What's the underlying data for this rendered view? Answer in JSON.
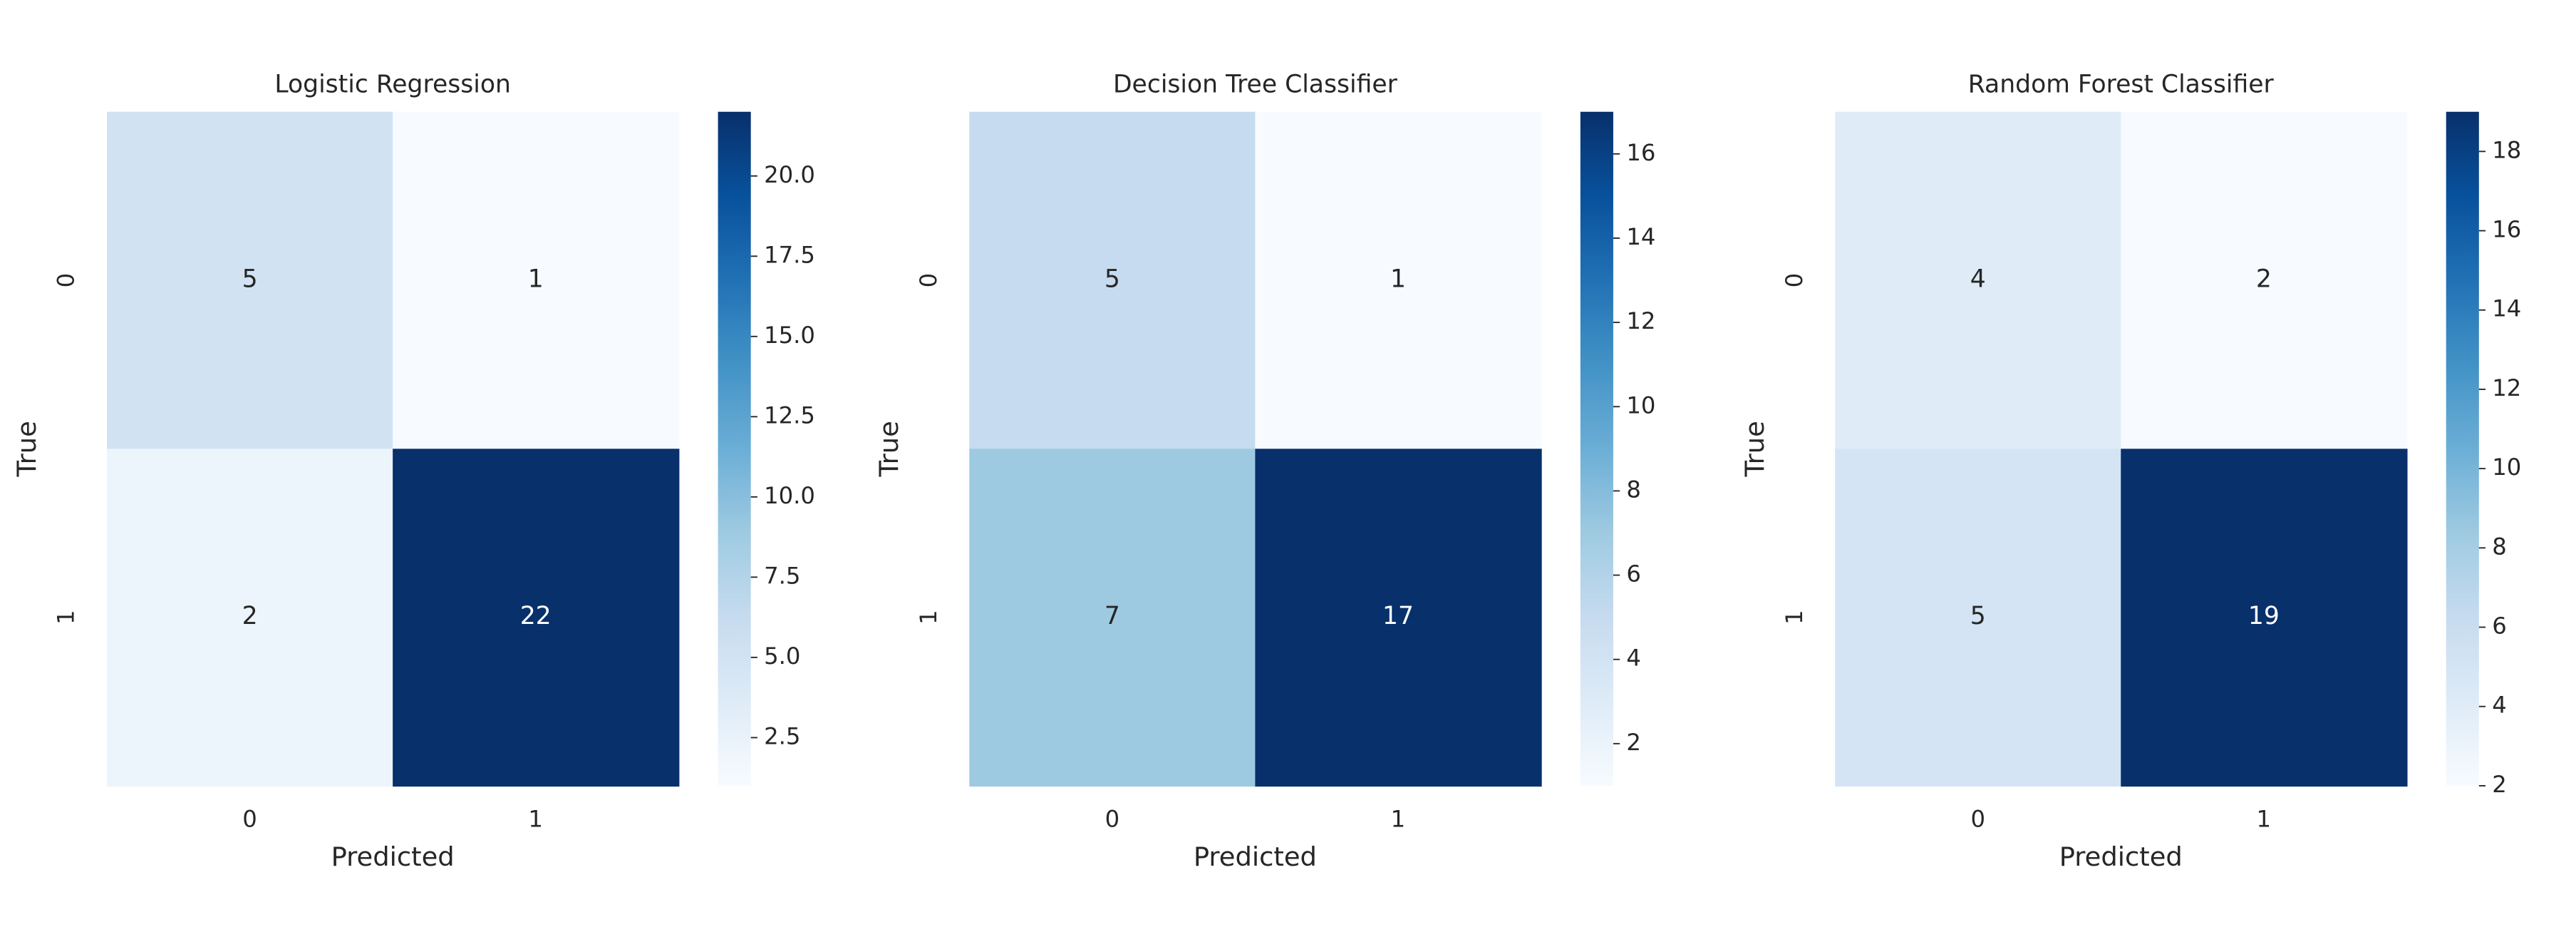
{
  "chart_data": [
    {
      "type": "heatmap",
      "title": "Logistic Regression",
      "xlabel": "Predicted",
      "ylabel": "True",
      "x_categories": [
        "0",
        "1"
      ],
      "y_categories": [
        "0",
        "1"
      ],
      "values": [
        [
          5,
          1
        ],
        [
          2,
          22
        ]
      ],
      "colormap": "Blues",
      "clim": [
        1,
        22
      ],
      "cticks": [
        2.5,
        {
          "value": 5,
          "label": "5.0"
        },
        7.5,
        {
          "value": 10,
          "label": "10.0"
        },
        12.5,
        {
          "value": 15,
          "label": "15.0"
        },
        17.5,
        {
          "value": 20,
          "label": "20.0"
        }
      ]
    },
    {
      "type": "heatmap",
      "title": "Decision Tree Classifier",
      "xlabel": "Predicted",
      "ylabel": "True",
      "x_categories": [
        "0",
        "1"
      ],
      "y_categories": [
        "0",
        "1"
      ],
      "values": [
        [
          5,
          1
        ],
        [
          7,
          17
        ]
      ],
      "colormap": "Blues",
      "clim": [
        1,
        17
      ],
      "cticks": [
        2,
        4,
        6,
        8,
        10,
        12,
        14,
        16
      ]
    },
    {
      "type": "heatmap",
      "title": "Random Forest Classifier",
      "xlabel": "Predicted",
      "ylabel": "True",
      "x_categories": [
        "0",
        "1"
      ],
      "y_categories": [
        "0",
        "1"
      ],
      "values": [
        [
          4,
          2
        ],
        [
          5,
          19
        ]
      ],
      "colormap": "Blues",
      "clim": [
        2,
        19
      ],
      "cticks": [
        2,
        4,
        6,
        8,
        10,
        12,
        14,
        16,
        18
      ]
    }
  ]
}
